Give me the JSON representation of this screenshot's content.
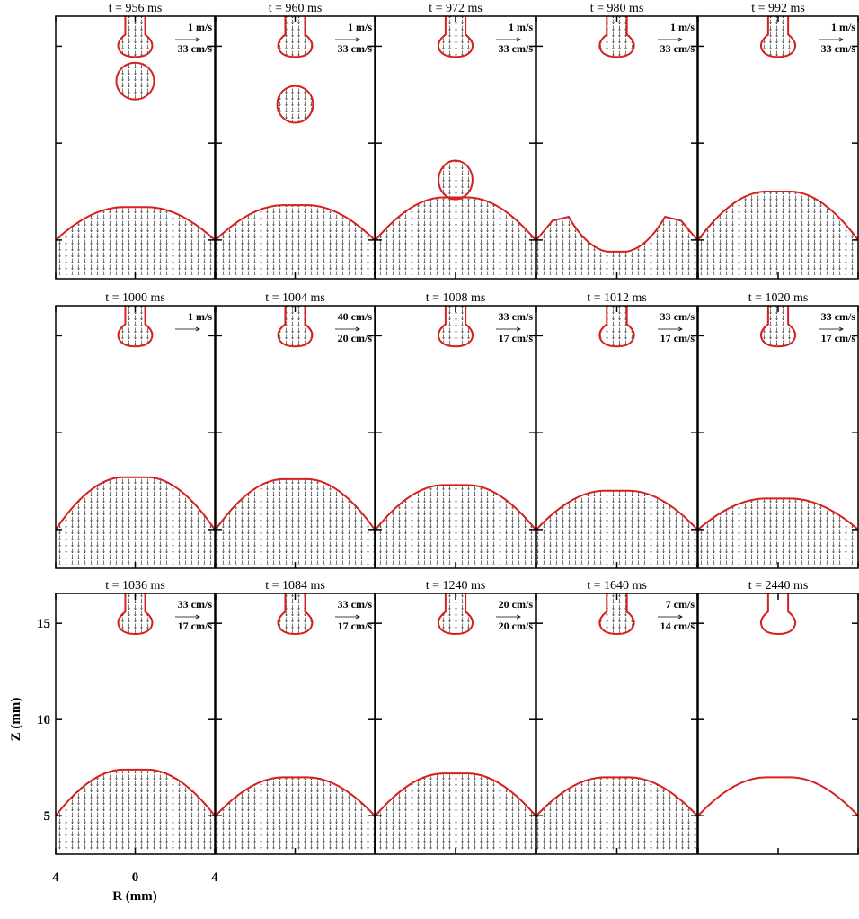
{
  "panels": [
    {
      "title": "t = 956 ms",
      "scales": [
        "1 m/s",
        "33 cm/s"
      ]
    },
    {
      "title": "t = 960 ms",
      "scales": [
        "1 m/s",
        "33 cm/s"
      ]
    },
    {
      "title": "t = 972 ms",
      "scales": [
        "1 m/s",
        "33 cm/s"
      ]
    },
    {
      "title": "t = 980 ms",
      "scales": [
        "1 m/s",
        "33 cm/s"
      ]
    },
    {
      "title": "t = 992 ms",
      "scales": [
        "1 m/s",
        "33 cm/s"
      ]
    },
    {
      "title": "t = 1000 ms",
      "scales": [
        "1 m/s"
      ]
    },
    {
      "title": "t = 1004 ms",
      "scales": [
        "40 cm/s",
        "20 cm/s"
      ]
    },
    {
      "title": "t = 1008 ms",
      "scales": [
        "33 cm/s",
        "17 cm/s"
      ]
    },
    {
      "title": "t = 1012 ms",
      "scales": [
        "33 cm/s",
        "17 cm/s"
      ]
    },
    {
      "title": "t = 1020 ms",
      "scales": [
        "33 cm/s",
        "17 cm/s"
      ]
    },
    {
      "title": "t = 1036 ms",
      "scales": [
        "33 cm/s",
        "17 cm/s"
      ]
    },
    {
      "title": "t = 1084 ms",
      "scales": [
        "33 cm/s",
        "17 cm/s"
      ]
    },
    {
      "title": "t = 1240 ms",
      "scales": [
        "20 cm/s",
        "20 cm/s"
      ]
    },
    {
      "title": "t = 1640 ms",
      "scales": [
        "7 cm/s",
        "14 cm/s"
      ]
    },
    {
      "title": "t = 2440 ms",
      "scales": []
    }
  ],
  "axes": {
    "y_label": "Z (mm)",
    "x_label": "R (mm)",
    "ylim": [
      3,
      16.55
    ],
    "yticks": [
      5,
      10,
      15
    ],
    "xlim": [
      -4,
      4
    ],
    "xticks": [
      {
        "value": -4,
        "label": "4"
      },
      0,
      {
        "value": 4,
        "label": "4"
      }
    ]
  }
}
